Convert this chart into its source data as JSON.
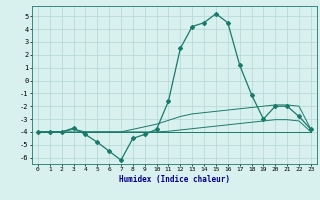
{
  "xlabel": "Humidex (Indice chaleur)",
  "x": [
    0,
    1,
    2,
    3,
    4,
    5,
    6,
    7,
    8,
    9,
    10,
    11,
    12,
    13,
    14,
    15,
    16,
    17,
    18,
    19,
    20,
    21,
    22,
    23
  ],
  "line_main": [
    -4,
    -4,
    -4,
    -3.7,
    -4.2,
    -4.8,
    -5.5,
    -6.2,
    -4.5,
    -4.2,
    -3.8,
    -1.6,
    2.5,
    4.2,
    4.5,
    5.2,
    4.5,
    1.2,
    -1.1,
    -3.0,
    -2.0,
    -2.0,
    -2.8,
    -3.8
  ],
  "line_upper": [
    -4,
    -4,
    -4,
    -3.8,
    -4.0,
    -4.0,
    -4.0,
    -4.0,
    -3.8,
    -3.6,
    -3.4,
    -3.1,
    -2.8,
    -2.6,
    -2.5,
    -2.4,
    -2.3,
    -2.2,
    -2.1,
    -2.0,
    -1.9,
    -1.9,
    -2.0,
    -3.8
  ],
  "line_lower": [
    -4,
    -4,
    -4,
    -4,
    -4,
    -4,
    -4,
    -4,
    -4,
    -4,
    -4,
    -3.95,
    -3.85,
    -3.75,
    -3.65,
    -3.55,
    -3.45,
    -3.35,
    -3.25,
    -3.15,
    -3.05,
    -3.05,
    -3.15,
    -4.0
  ],
  "line_flat": [
    -4,
    -4,
    -4,
    -4,
    -4,
    -4,
    -4,
    -4,
    -4,
    -4,
    -4,
    -4,
    -4,
    -4,
    -4,
    -4,
    -4,
    -4,
    -4,
    -4,
    -4,
    -4,
    -4,
    -4
  ],
  "line_color": "#1a7a6a",
  "bg_color": "#d8f0ee",
  "grid_color": "#b0d8d4",
  "ylim": [
    -6.5,
    5.8
  ],
  "yticks": [
    -6,
    -5,
    -4,
    -3,
    -2,
    -1,
    0,
    1,
    2,
    3,
    4,
    5
  ],
  "xlim": [
    -0.5,
    23.5
  ]
}
